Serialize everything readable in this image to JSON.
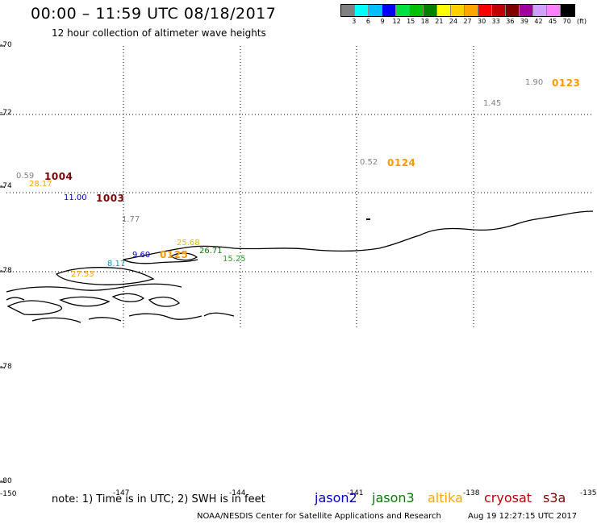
{
  "header": {
    "title": "00:00 – 11:59 UTC 08/18/2017",
    "subtitle": "12 hour collection of altimeter wave heights"
  },
  "legend": {
    "colors": [
      "#808080",
      "#00ffff",
      "#00bfff",
      "#0000ff",
      "#00e040",
      "#00c000",
      "#008000",
      "#ffff00",
      "#ffd000",
      "#ffa500",
      "#ff0000",
      "#c00000",
      "#800000",
      "#a000a0",
      "#d0a0ff",
      "#ff80ff",
      "#000000"
    ],
    "labels": [
      "3",
      "6",
      "9",
      "12",
      "15",
      "18",
      "21",
      "24",
      "27",
      "30",
      "33",
      "36",
      "39",
      "42",
      "45",
      "70"
    ],
    "unit": "(ft)"
  },
  "axes": {
    "lat_labels": [
      "-70",
      "-72",
      "-74",
      "-78",
      "-78",
      "-80"
    ],
    "lon_labels": [
      "-150",
      "-147",
      "-144",
      "-141",
      "-138",
      "-135"
    ]
  },
  "observations": [
    {
      "text": "1.90",
      "color": "#808080"
    },
    {
      "text": "1.45",
      "color": "#808080"
    },
    {
      "text": "0.52",
      "color": "#808080"
    },
    {
      "text": "0.59",
      "color": "#808080"
    },
    {
      "text": "28.17",
      "color": "#ffa500"
    },
    {
      "text": "11.00",
      "color": "#0000c0"
    },
    {
      "text": "1.77",
      "color": "#808080"
    },
    {
      "text": "25.68",
      "color": "#e0c000"
    },
    {
      "text": "26.71",
      "color": "#008000"
    },
    {
      "text": "9.60",
      "color": "#0000c0"
    },
    {
      "text": "8.17",
      "color": "#00a0d0"
    },
    {
      "text": "15.25",
      "color": "#00c000"
    },
    {
      "text": "27.53",
      "color": "#ffa500"
    }
  ],
  "cycles": [
    {
      "text": "0123",
      "color": "#ff9900"
    },
    {
      "text": "0124",
      "color": "#ff9900"
    },
    {
      "text": "1004",
      "color": "#800000"
    },
    {
      "text": "1003",
      "color": "#800000"
    },
    {
      "text": "0125",
      "color": "#ff9900"
    }
  ],
  "footer": {
    "note": "note: 1) Time is in UTC; 2) SWH is in feet",
    "satellites": [
      {
        "name": "jason2",
        "color": "#0000c0"
      },
      {
        "name": "jason3",
        "color": "#008000"
      },
      {
        "name": "altika",
        "color": "#ffa500"
      },
      {
        "name": "cryosat",
        "color": "#c00000"
      },
      {
        "name": "s3a",
        "color": "#800000"
      }
    ],
    "credit": "NOAA/NESDIS Center for Satellite Applications and Research",
    "timestamp": "Aug 19 12:27:15 UTC 2017"
  }
}
